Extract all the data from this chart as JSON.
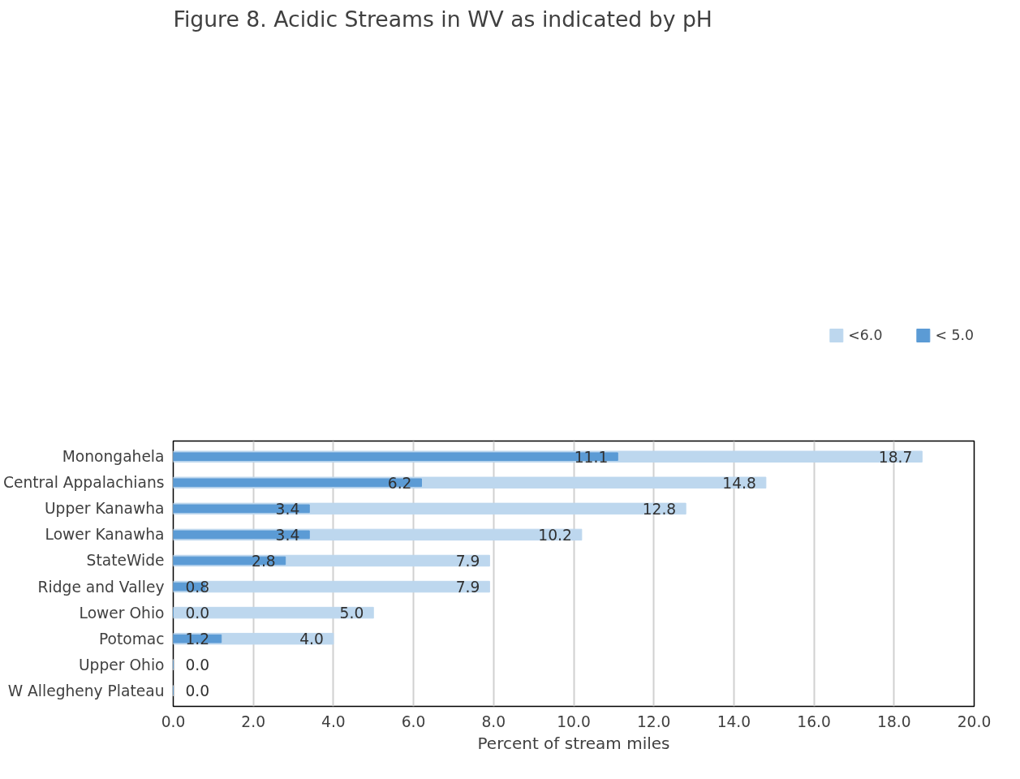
{
  "chart_data": {
    "type": "bar",
    "orientation": "horizontal",
    "title": "Figure 8. Acidic Streams in WV as indicated by pH",
    "xlabel": "Percent of stream miles",
    "categories": [
      "Monongahela",
      "Central Appalachians",
      "Upper Kanawha",
      "Lower Kanawha",
      "StateWide",
      "Ridge and Valley",
      "Lower Ohio",
      "Potomac",
      "Upper Ohio",
      "W Allegheny Plateau"
    ],
    "series": [
      {
        "name": "<6.0",
        "color": "#bdd7ee",
        "values": [
          18.7,
          14.8,
          12.8,
          10.2,
          7.9,
          7.9,
          5.0,
          4.0,
          0.0,
          0.0
        ],
        "value_labels": [
          "18.7",
          "14.8",
          "12.8",
          "10.2",
          "7.9",
          "7.9",
          "5.0",
          "4.0",
          "0.0",
          "0.0"
        ]
      },
      {
        "name": "< 5.0",
        "color": "#5b9bd5",
        "values": [
          11.1,
          6.2,
          3.4,
          3.4,
          2.8,
          0.8,
          0.0,
          1.2,
          0.0,
          0.0
        ],
        "value_labels": [
          "11.1",
          "6.2",
          "3.4",
          "3.4",
          "2.8",
          "0.8",
          "0.0",
          "1.2",
          null,
          null
        ]
      }
    ],
    "xlim": [
      0,
      20
    ],
    "xticks": [
      {
        "value": 0,
        "label": "0.0"
      },
      {
        "value": 2,
        "label": "2.0"
      },
      {
        "value": 4,
        "label": "4.0"
      },
      {
        "value": 6,
        "label": "6.0"
      },
      {
        "value": 8,
        "label": "8.0"
      },
      {
        "value": 10,
        "label": "10.0"
      },
      {
        "value": 12,
        "label": "12.0"
      },
      {
        "value": 14,
        "label": "14.0"
      },
      {
        "value": 16,
        "label": "16.0"
      },
      {
        "value": 18,
        "label": "18.0"
      },
      {
        "value": 20,
        "label": "20.0"
      }
    ],
    "grid": "x",
    "legend": "top right"
  }
}
